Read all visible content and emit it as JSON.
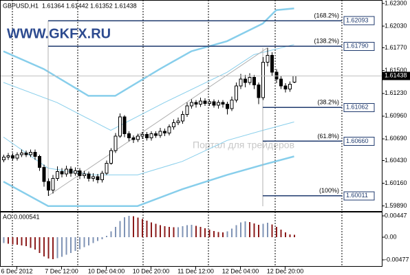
{
  "chart_data": [
    {
      "type": "candlestick",
      "title": "GBPUSD,H1  1.61364 1.61442 1.61352 1.61438",
      "watermarks": [
        "WWW.GKFX.RU",
        "Портал для трейдеров"
      ],
      "categories": [
        null,
        null,
        null,
        "6 Dec 2012",
        null,
        null,
        null,
        null,
        null,
        null,
        null,
        null,
        null,
        "7 Dec 12:00",
        null,
        null,
        null,
        null,
        null,
        null,
        null,
        null,
        null,
        "10 Dec 04:00",
        null,
        null,
        null,
        null,
        null,
        null,
        null,
        null,
        null,
        "10 Dec 20:00",
        null,
        null,
        null,
        null,
        null,
        null,
        null,
        null,
        null,
        "11 Dec 12:00",
        null,
        null,
        null,
        null,
        null,
        null,
        null,
        null,
        null,
        "12 Dec 04:00",
        null,
        null,
        null,
        null,
        null,
        null,
        null,
        null,
        null,
        "12 Dec 20:00",
        null,
        null
      ],
      "open": [
        1.6044,
        1.6047,
        1.6049,
        1.6046,
        1.605,
        1.6052,
        1.605,
        1.6053,
        1.6048,
        1.6035,
        1.6018,
        1.6008,
        1.6022,
        1.603,
        1.6027,
        1.6033,
        1.6028,
        1.6031,
        1.6025,
        1.6027,
        1.6022,
        1.6024,
        1.602,
        1.6028,
        1.604,
        1.6055,
        1.6072,
        1.6095,
        1.6075,
        1.607,
        1.6068,
        1.6072,
        1.6074,
        1.607,
        1.6075,
        1.6073,
        1.6078,
        1.6076,
        1.6083,
        1.6088,
        1.609,
        1.6098,
        1.6108,
        1.6112,
        1.611,
        1.6114,
        1.6111,
        1.6113,
        1.6109,
        1.6112,
        1.611,
        1.6105,
        1.6115,
        1.6132,
        1.614,
        1.6136,
        1.6142,
        1.6133,
        1.6118,
        1.616,
        1.6168,
        1.6148,
        1.614,
        1.6132,
        1.6128,
        1.61364
      ],
      "high": [
        1.605,
        1.6052,
        1.6052,
        1.6053,
        1.6056,
        1.6055,
        1.6056,
        1.6056,
        1.605,
        1.6038,
        1.6022,
        1.6026,
        1.6036,
        1.6034,
        1.6037,
        1.6036,
        1.6035,
        1.6034,
        1.6031,
        1.603,
        1.6028,
        1.6027,
        1.6031,
        1.6043,
        1.6058,
        1.6076,
        1.6099,
        1.6097,
        1.6078,
        1.6073,
        1.6075,
        1.6077,
        1.6077,
        1.6078,
        1.6078,
        1.6082,
        1.6081,
        1.6086,
        1.6092,
        1.6094,
        1.6102,
        1.6112,
        1.6116,
        1.6115,
        1.6118,
        1.6117,
        1.6116,
        1.6116,
        1.6115,
        1.6115,
        1.6113,
        1.6119,
        1.6136,
        1.6146,
        1.6145,
        1.6147,
        1.6145,
        1.6136,
        1.6166,
        1.6177,
        1.6172,
        1.6152,
        1.6144,
        1.6135,
        1.6137,
        1.61442
      ],
      "low": [
        1.6041,
        1.6044,
        1.6043,
        1.6043,
        1.6047,
        1.6047,
        1.6047,
        1.6044,
        1.6031,
        1.6012,
        1.6001,
        1.6004,
        1.6019,
        1.6023,
        1.6024,
        1.6024,
        1.6025,
        1.6021,
        1.6022,
        1.6018,
        1.6018,
        1.6016,
        1.6017,
        1.6026,
        1.6038,
        1.6052,
        1.607,
        1.6071,
        1.6066,
        1.6064,
        1.6065,
        1.6069,
        1.6067,
        1.6067,
        1.607,
        1.607,
        1.6072,
        1.6073,
        1.608,
        1.6085,
        1.6087,
        1.6095,
        1.6105,
        1.6106,
        1.6107,
        1.6108,
        1.6108,
        1.6106,
        1.6105,
        1.6106,
        1.6098,
        1.6102,
        1.6112,
        1.6128,
        1.613,
        1.6133,
        1.6128,
        1.611,
        1.6115,
        1.6155,
        1.6144,
        1.6135,
        1.6128,
        1.6124,
        1.6125,
        1.61352
      ],
      "close": [
        1.6047,
        1.6049,
        1.6046,
        1.605,
        1.6052,
        1.605,
        1.6053,
        1.6048,
        1.6035,
        1.6018,
        1.6008,
        1.6022,
        1.603,
        1.6027,
        1.6033,
        1.6028,
        1.6031,
        1.6025,
        1.6027,
        1.6022,
        1.6024,
        1.602,
        1.6028,
        1.604,
        1.6055,
        1.6072,
        1.6095,
        1.6075,
        1.607,
        1.6068,
        1.6072,
        1.6074,
        1.607,
        1.6075,
        1.6073,
        1.6078,
        1.6076,
        1.6083,
        1.6088,
        1.609,
        1.6098,
        1.6108,
        1.6112,
        1.611,
        1.6114,
        1.6111,
        1.6113,
        1.6109,
        1.6112,
        1.611,
        1.6105,
        1.6115,
        1.6132,
        1.614,
        1.6136,
        1.6142,
        1.6133,
        1.6118,
        1.616,
        1.6168,
        1.6148,
        1.614,
        1.6132,
        1.6128,
        1.6134,
        1.61438
      ],
      "lines": [
        {
          "color": "#87ceeb",
          "width": 2.5,
          "x": [
            0,
            9,
            19,
            25,
            35,
            42,
            50,
            58,
            61,
            65
          ],
          "values": [
            1.6173,
            1.6152,
            1.612,
            1.612,
            1.6152,
            1.6173,
            1.6185,
            1.6206,
            1.6222,
            1.6224
          ]
        },
        {
          "color": "#87ceeb",
          "width": 1,
          "x": [
            0,
            12,
            24,
            36,
            50,
            56,
            65
          ],
          "values": [
            1.6136,
            1.6112,
            1.6079,
            1.6112,
            1.6148,
            1.6169,
            1.6181
          ]
        },
        {
          "color": "#87ceeb",
          "width": 1,
          "x": [
            0,
            10,
            20,
            30,
            40,
            50,
            58,
            65
          ],
          "values": [
            1.6071,
            1.6034,
            1.6026,
            1.6026,
            1.6042,
            1.6067,
            1.6079,
            1.6089
          ]
        },
        {
          "color": "#87ceeb",
          "width": 2.5,
          "x": [
            0,
            10,
            20,
            30,
            40,
            50,
            58,
            65
          ],
          "values": [
            1.6018,
            1.5989,
            1.5989,
            1.5989,
            1.6009,
            1.6026,
            1.6038,
            1.6048
          ]
        }
      ],
      "levels": [
        {
          "name": "(168.2%)",
          "price": {
            "value": 1.62093,
            "label": "1.62093"
          }
        },
        {
          "name": "(138.2%)",
          "price": {
            "value": 1.6179,
            "label": "1.61790"
          }
        },
        {
          "name": "(38.2%)",
          "price": {
            "value": 1.61062,
            "label": "1.61062"
          }
        },
        {
          "name": "(61.8%)",
          "price": {
            "value": 1.6066,
            "label": "1.60660"
          }
        },
        {
          "name": "(100%)",
          "price": {
            "value": 1.60011,
            "label": "1.60011"
          }
        }
      ],
      "ylim": [
        1.5983,
        1.6234
      ],
      "yticks": [
        {
          "value": 1.623,
          "label": "1.62300"
        },
        {
          "value": 1.6203,
          "label": "1.62030"
        },
        {
          "value": 1.6177,
          "label": "1.61770"
        },
        {
          "value": 1.615,
          "label": "1.61500"
        },
        {
          "value": 1.6123,
          "label": "1.61230"
        },
        {
          "value": 1.6096,
          "label": "1.60960"
        },
        {
          "value": 1.6069,
          "label": "1.60690"
        },
        {
          "value": 1.6043,
          "label": "1.60430"
        },
        {
          "value": 1.6016,
          "label": "1.60160"
        },
        {
          "value": 1.5989,
          "label": "1.59890"
        }
      ]
    },
    {
      "type": "bar",
      "title": "AO",
      "values": [
        -0.0012,
        -0.0014,
        -0.0015,
        -0.0016,
        -0.0017,
        -0.0019,
        -0.0022,
        -0.0026,
        -0.0033,
        -0.004,
        -0.0045,
        -0.0046,
        -0.0044,
        -0.0041,
        -0.0037,
        -0.0033,
        -0.0029,
        -0.0025,
        -0.0021,
        -0.0017,
        -0.0012,
        -0.0008,
        -0.0004,
        0.0003,
        0.0012,
        0.0022,
        0.0034,
        0.0042,
        0.0045,
        0.0044,
        0.0041,
        0.0038,
        0.0035,
        0.0031,
        0.0028,
        0.0025,
        0.0023,
        0.0022,
        0.0021,
        0.0021,
        0.0023,
        0.0025,
        0.0026,
        0.0024,
        0.0022,
        0.0019,
        0.0016,
        0.0013,
        0.0011,
        0.001,
        0.0012,
        0.0018,
        0.0025,
        0.0031,
        0.0033,
        0.0032,
        0.0029,
        0.0026,
        0.0028,
        0.003,
        0.0027,
        0.0022,
        0.0016,
        0.001,
        0.0006,
        0.000541
      ],
      "up_color": "#7f93b5",
      "down_color": "#8b1a1a",
      "ylim": [
        -0.0062,
        0.0052
      ],
      "yticks": [
        0.00447,
        {
          "value": 0,
          "label": "0.00"
        },
        -0.00477
      ]
    }
  ]
}
